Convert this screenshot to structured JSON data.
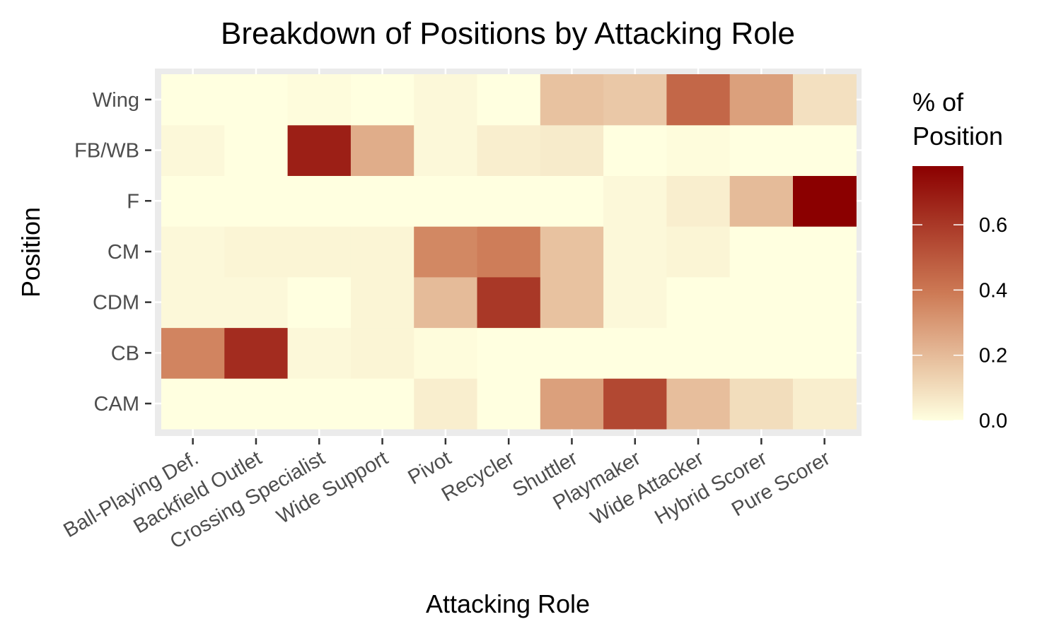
{
  "chart_data": {
    "type": "heatmap",
    "title": "Breakdown of Positions by Attacking Role",
    "xlabel": "Attacking Role",
    "ylabel": "Position",
    "x_categories": [
      "Ball-Playing Def.",
      "Backfield Outlet",
      "Crossing Specialist",
      "Wide Support",
      "Pivot",
      "Recycler",
      "Shuttler",
      "Playmaker",
      "Wide Attacker",
      "Hybrid Scorer",
      "Pure Scorer"
    ],
    "y_categories": [
      "CAM",
      "CB",
      "CDM",
      "CM",
      "F",
      "FB/WB",
      "Wing"
    ],
    "values": [
      [
        0.0,
        0.0,
        0.0,
        0.0,
        0.05,
        0.0,
        0.28,
        0.55,
        0.19,
        0.1,
        0.05
      ],
      [
        0.36,
        0.64,
        0.02,
        0.03,
        0.01,
        0.0,
        0.0,
        0.0,
        0.0,
        0.0,
        0.0
      ],
      [
        0.02,
        0.02,
        0.0,
        0.03,
        0.2,
        0.6,
        0.18,
        0.02,
        0.0,
        0.0,
        0.0
      ],
      [
        0.02,
        0.03,
        0.03,
        0.03,
        0.35,
        0.38,
        0.18,
        0.02,
        0.03,
        0.0,
        0.0
      ],
      [
        0.0,
        0.0,
        0.0,
        0.0,
        0.0,
        0.0,
        0.0,
        0.02,
        0.05,
        0.2,
        0.78
      ],
      [
        0.02,
        0.0,
        0.68,
        0.24,
        0.02,
        0.05,
        0.06,
        0.0,
        0.01,
        0.0,
        0.0
      ],
      [
        0.0,
        0.0,
        0.01,
        0.0,
        0.02,
        0.0,
        0.18,
        0.16,
        0.45,
        0.28,
        0.09
      ]
    ],
    "color_scale": {
      "low": "#ffffe0",
      "mid": "#cd7a55",
      "high": "#8b0000",
      "domain": [
        0,
        0.78
      ]
    },
    "legend": {
      "title_lines": [
        "% of",
        "Position"
      ],
      "ticks": [
        "0.0",
        "0.2",
        "0.4",
        "0.6"
      ],
      "tick_values": [
        0,
        0.2,
        0.4,
        0.6
      ]
    },
    "panel_background": "#ebebeb",
    "grid": true
  }
}
